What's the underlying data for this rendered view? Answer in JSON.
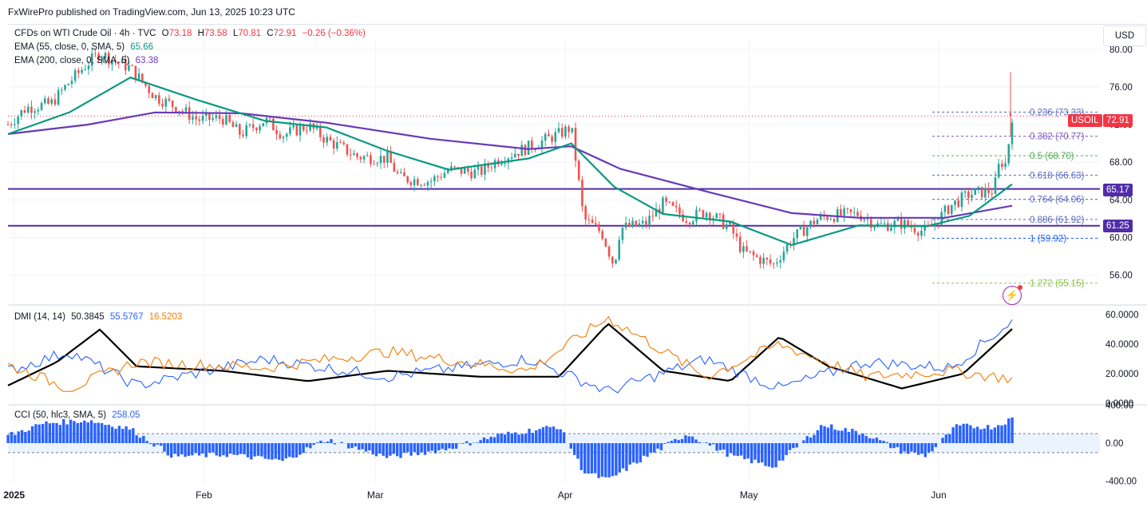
{
  "publisher": "FxWirePro published on TradingView.com, Jun 13, 2025 10:23 UTC",
  "currency": "USD",
  "colors": {
    "up": "#26a69a",
    "down": "#ef5350",
    "ema55": "#089981",
    "ema200": "#673ab7",
    "dmiAdx": "#000000",
    "dmiPlus": "#2962ff",
    "dmiMinus": "#f57c00",
    "cci": "#2962ff",
    "hline": "#512da8",
    "last": "#f23645"
  },
  "price_legend": {
    "title": "CFDs on WTI Crude Oil · 4h · TVC",
    "o_label": "O",
    "o": "73.18",
    "h_label": "H",
    "h": "73.58",
    "l_label": "L",
    "l": "70.81",
    "c_label": "C",
    "c": "72.91",
    "change": "−0.26 (−0.36%)",
    "ema55_label": "EMA (55, close, 0, SMA, 5)",
    "ema55_val": "65.66",
    "ema200_label": "EMA (200, close, 0, SMA, 5)",
    "ema200_val": "63.38"
  },
  "dmi_legend": {
    "label": "DMI (14, 14)",
    "adx": "50.3845",
    "plus": "55.5767",
    "minus": "16.5203"
  },
  "cci_legend": {
    "label": "CCI (50, hlc3, SMA, 5)",
    "value": "258.05"
  },
  "badges": {
    "symbol": "USOIL",
    "last": "72.91",
    "h1": "65.17",
    "h2": "61.25"
  },
  "chart_data": [
    {
      "type": "candlestick",
      "title": "CFDs on WTI Crude Oil · 4h · TVC",
      "y_ticks": [
        "80.00",
        "76.00",
        "72.00",
        "68.00",
        "64.00",
        "60.00",
        "56.00"
      ],
      "x_ticks": [
        "2025",
        "Feb",
        "Mar",
        "Apr",
        "May",
        "Jun"
      ],
      "ylim": [
        53,
        81
      ],
      "horizontal_lines": [
        65.17,
        61.25
      ],
      "last_price": 72.91,
      "fibonacci": [
        {
          "ratio": "0.236",
          "level": 73.33,
          "label": "0.236 (73.33)"
        },
        {
          "ratio": "0.382",
          "level": 70.77,
          "label": "0.382 (70.77)"
        },
        {
          "ratio": "0.5",
          "level": 68.7,
          "label": "0.5 (68.70)"
        },
        {
          "ratio": "0.618",
          "level": 66.63,
          "label": "0.618 (66.63)"
        },
        {
          "ratio": "0.764",
          "level": 64.06,
          "label": "0.764 (64.06)"
        },
        {
          "ratio": "0.886",
          "level": 61.92,
          "label": "0.886 (61.92)"
        },
        {
          "ratio": "1",
          "level": 59.92,
          "label": "1 (59.92)"
        },
        {
          "ratio": "1.272",
          "level": 55.15,
          "label": "1.272 (55.15)"
        }
      ],
      "close_path": [
        {
          "date": "2024-12-31",
          "close": 72.0
        },
        {
          "date": "2025-01-03",
          "close": 73.8
        },
        {
          "date": "2025-01-07",
          "close": 74.2
        },
        {
          "date": "2025-01-10",
          "close": 76.5
        },
        {
          "date": "2025-01-13",
          "close": 78.5
        },
        {
          "date": "2025-01-15",
          "close": 79.6
        },
        {
          "date": "2025-01-17",
          "close": 78.9
        },
        {
          "date": "2025-01-20",
          "close": 78.0
        },
        {
          "date": "2025-01-24",
          "close": 75.0
        },
        {
          "date": "2025-01-28",
          "close": 73.7
        },
        {
          "date": "2025-01-31",
          "close": 72.5
        },
        {
          "date": "2025-02-04",
          "close": 72.7
        },
        {
          "date": "2025-02-07",
          "close": 71.0
        },
        {
          "date": "2025-02-11",
          "close": 72.5
        },
        {
          "date": "2025-02-14",
          "close": 70.9
        },
        {
          "date": "2025-02-18",
          "close": 71.9
        },
        {
          "date": "2025-02-21",
          "close": 70.4
        },
        {
          "date": "2025-02-26",
          "close": 68.6
        },
        {
          "date": "2025-03-03",
          "close": 68.4
        },
        {
          "date": "2025-03-05",
          "close": 66.3
        },
        {
          "date": "2025-03-10",
          "close": 66.0
        },
        {
          "date": "2025-03-13",
          "close": 67.2
        },
        {
          "date": "2025-03-18",
          "close": 66.9
        },
        {
          "date": "2025-03-21",
          "close": 68.3
        },
        {
          "date": "2025-03-26",
          "close": 69.6
        },
        {
          "date": "2025-03-31",
          "close": 71.0
        },
        {
          "date": "2025-04-02",
          "close": 71.7
        },
        {
          "date": "2025-04-03",
          "close": 67.0
        },
        {
          "date": "2025-04-04",
          "close": 62.0
        },
        {
          "date": "2025-04-07",
          "close": 60.5
        },
        {
          "date": "2025-04-09",
          "close": 57.0
        },
        {
          "date": "2025-04-10",
          "close": 61.0
        },
        {
          "date": "2025-04-14",
          "close": 61.4
        },
        {
          "date": "2025-04-17",
          "close": 63.6
        },
        {
          "date": "2025-04-21",
          "close": 62.0
        },
        {
          "date": "2025-04-24",
          "close": 62.8
        },
        {
          "date": "2025-04-28",
          "close": 61.0
        },
        {
          "date": "2025-04-30",
          "close": 58.5
        },
        {
          "date": "2025-05-05",
          "close": 57.1
        },
        {
          "date": "2025-05-08",
          "close": 59.8
        },
        {
          "date": "2025-05-12",
          "close": 61.9
        },
        {
          "date": "2025-05-14",
          "close": 62.3
        },
        {
          "date": "2025-05-19",
          "close": 62.5
        },
        {
          "date": "2025-05-22",
          "close": 61.3
        },
        {
          "date": "2025-05-26",
          "close": 61.5
        },
        {
          "date": "2025-05-29",
          "close": 60.8
        },
        {
          "date": "2025-05-30",
          "close": 60.6
        },
        {
          "date": "2025-06-03",
          "close": 63.4
        },
        {
          "date": "2025-06-06",
          "close": 64.6
        },
        {
          "date": "2025-06-10",
          "close": 65.0
        },
        {
          "date": "2025-06-11",
          "close": 68.1
        },
        {
          "date": "2025-06-12",
          "close": 67.8
        },
        {
          "date": "2025-06-13",
          "close": 72.91
        }
      ],
      "ema55_path": [
        {
          "date": "2024-12-31",
          "value": 71.0
        },
        {
          "date": "2025-01-10",
          "value": 73.3
        },
        {
          "date": "2025-01-20",
          "value": 77.0
        },
        {
          "date": "2025-01-31",
          "value": 74.6
        },
        {
          "date": "2025-02-11",
          "value": 72.4
        },
        {
          "date": "2025-02-21",
          "value": 71.7
        },
        {
          "date": "2025-03-03",
          "value": 69.2
        },
        {
          "date": "2025-03-13",
          "value": 67.2
        },
        {
          "date": "2025-03-26",
          "value": 68.4
        },
        {
          "date": "2025-04-02",
          "value": 70.0
        },
        {
          "date": "2025-04-09",
          "value": 65.4
        },
        {
          "date": "2025-04-17",
          "value": 62.5
        },
        {
          "date": "2025-04-28",
          "value": 61.7
        },
        {
          "date": "2025-05-08",
          "value": 59.2
        },
        {
          "date": "2025-05-19",
          "value": 61.3
        },
        {
          "date": "2025-05-30",
          "value": 61.2
        },
        {
          "date": "2025-06-06",
          "value": 62.3
        },
        {
          "date": "2025-06-13",
          "value": 65.66
        }
      ],
      "ema200_path": [
        {
          "date": "2024-12-31",
          "value": 71.0
        },
        {
          "date": "2025-01-13",
          "value": 72.0
        },
        {
          "date": "2025-01-24",
          "value": 73.3
        },
        {
          "date": "2025-02-07",
          "value": 73.2
        },
        {
          "date": "2025-02-21",
          "value": 72.2
        },
        {
          "date": "2025-03-10",
          "value": 70.5
        },
        {
          "date": "2025-03-26",
          "value": 69.4
        },
        {
          "date": "2025-04-02",
          "value": 69.7
        },
        {
          "date": "2025-04-10",
          "value": 67.3
        },
        {
          "date": "2025-04-24",
          "value": 64.9
        },
        {
          "date": "2025-05-08",
          "value": 62.6
        },
        {
          "date": "2025-05-19",
          "value": 62.1
        },
        {
          "date": "2025-06-02",
          "value": 62.1
        },
        {
          "date": "2025-06-13",
          "value": 63.38
        }
      ]
    },
    {
      "type": "line",
      "title": "DMI (14, 14)",
      "y_ticks": [
        "60.0000",
        "40.0000",
        "20.0000",
        "0.0000"
      ],
      "ylim": [
        0,
        65
      ],
      "series": [
        {
          "name": "ADX",
          "points": [
            {
              "date": "2024-12-31",
              "value": 12
            },
            {
              "date": "2025-01-08",
              "value": 28
            },
            {
              "date": "2025-01-15",
              "value": 50
            },
            {
              "date": "2025-01-21",
              "value": 25
            },
            {
              "date": "2025-02-04",
              "value": 22
            },
            {
              "date": "2025-02-18",
              "value": 15
            },
            {
              "date": "2025-03-03",
              "value": 22
            },
            {
              "date": "2025-03-18",
              "value": 18
            },
            {
              "date": "2025-03-31",
              "value": 18
            },
            {
              "date": "2025-04-08",
              "value": 54
            },
            {
              "date": "2025-04-17",
              "value": 22
            },
            {
              "date": "2025-04-28",
              "value": 15
            },
            {
              "date": "2025-05-06",
              "value": 45
            },
            {
              "date": "2025-05-14",
              "value": 25
            },
            {
              "date": "2025-05-26",
              "value": 10
            },
            {
              "date": "2025-06-05",
              "value": 20
            },
            {
              "date": "2025-06-13",
              "value": 50.38
            }
          ]
        },
        {
          "name": "+DI",
          "points": [
            {
              "date": "2024-12-31",
              "value": 22
            },
            {
              "date": "2025-01-10",
              "value": 35
            },
            {
              "date": "2025-01-21",
              "value": 12
            },
            {
              "date": "2025-02-11",
              "value": 30
            },
            {
              "date": "2025-03-03",
              "value": 18
            },
            {
              "date": "2025-03-26",
              "value": 30
            },
            {
              "date": "2025-04-08",
              "value": 8
            },
            {
              "date": "2025-04-24",
              "value": 30
            },
            {
              "date": "2025-05-06",
              "value": 10
            },
            {
              "date": "2025-05-20",
              "value": 28
            },
            {
              "date": "2025-06-03",
              "value": 24
            },
            {
              "date": "2025-06-13",
              "value": 55.58
            }
          ]
        },
        {
          "name": "−DI",
          "points": [
            {
              "date": "2024-12-31",
              "value": 26
            },
            {
              "date": "2025-01-10",
              "value": 10
            },
            {
              "date": "2025-01-21",
              "value": 28
            },
            {
              "date": "2025-02-11",
              "value": 24
            },
            {
              "date": "2025-03-03",
              "value": 35
            },
            {
              "date": "2025-03-26",
              "value": 22
            },
            {
              "date": "2025-04-08",
              "value": 58
            },
            {
              "date": "2025-04-24",
              "value": 18
            },
            {
              "date": "2025-05-06",
              "value": 40
            },
            {
              "date": "2025-05-20",
              "value": 18
            },
            {
              "date": "2025-06-03",
              "value": 22
            },
            {
              "date": "2025-06-13",
              "value": 16.52
            }
          ]
        }
      ]
    },
    {
      "type": "histogram",
      "title": "CCI (50, hlc3, SMA, 5)",
      "y_ticks": [
        "400.00",
        "0.00",
        "-400.00"
      ],
      "ylim": [
        -420,
        420
      ],
      "bands": [
        100,
        -100
      ],
      "points": [
        {
          "date": "2024-12-31",
          "value": 80
        },
        {
          "date": "2025-01-06",
          "value": 210
        },
        {
          "date": "2025-01-13",
          "value": 240
        },
        {
          "date": "2025-01-20",
          "value": 150
        },
        {
          "date": "2025-01-27",
          "value": -140
        },
        {
          "date": "2025-02-05",
          "value": -120
        },
        {
          "date": "2025-02-14",
          "value": -190
        },
        {
          "date": "2025-02-21",
          "value": 40
        },
        {
          "date": "2025-03-03",
          "value": -150
        },
        {
          "date": "2025-03-12",
          "value": -70
        },
        {
          "date": "2025-03-21",
          "value": 80
        },
        {
          "date": "2025-03-31",
          "value": 180
        },
        {
          "date": "2025-04-04",
          "value": -300
        },
        {
          "date": "2025-04-08",
          "value": -390
        },
        {
          "date": "2025-04-14",
          "value": -150
        },
        {
          "date": "2025-04-21",
          "value": 100
        },
        {
          "date": "2025-04-28",
          "value": -130
        },
        {
          "date": "2025-05-05",
          "value": -250
        },
        {
          "date": "2025-05-13",
          "value": 190
        },
        {
          "date": "2025-05-20",
          "value": 100
        },
        {
          "date": "2025-05-26",
          "value": -90
        },
        {
          "date": "2025-05-30",
          "value": -130
        },
        {
          "date": "2025-06-04",
          "value": 180
        },
        {
          "date": "2025-06-10",
          "value": 170
        },
        {
          "date": "2025-06-13",
          "value": 258.05
        }
      ]
    }
  ]
}
